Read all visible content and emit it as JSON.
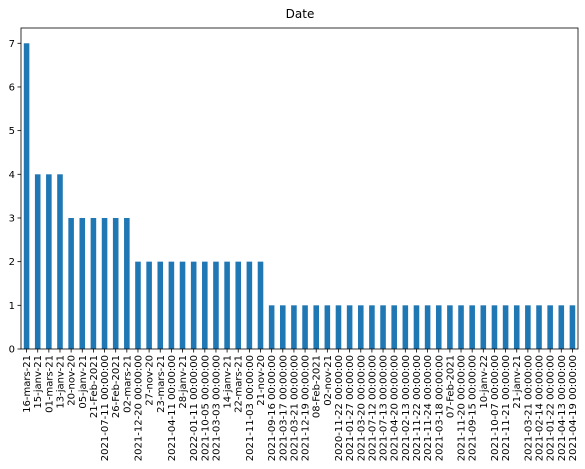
{
  "chart_data": {
    "type": "bar",
    "title": "Date",
    "xlabel": "",
    "ylabel": "",
    "ylim": [
      0,
      7.35
    ],
    "yticks": [
      0,
      1,
      2,
      3,
      4,
      5,
      6,
      7
    ],
    "grid": false,
    "legend": "none",
    "bar_color": "#1f77b4",
    "categories": [
      "16-mars-21",
      "15-janv-21",
      "01-mars-21",
      "13-janv-21",
      "20-nov-20",
      "05-janv-21",
      "21-Feb-2021",
      "2021-07-11 00:00:00",
      "26-Feb-2021",
      "02-mars-21",
      "2021-12-20 00:00:00",
      "27-nov-20",
      "23-mars-21",
      "2021-04-11 00:00:00",
      "28-janv-21",
      "2022-01-11 00:00:00",
      "2021-10-05 00:00:00",
      "2021-03-03 00:00:00",
      "14-janv-21",
      "22-mars-21",
      "2021-11-03 00:00:00",
      "21-nov-20",
      "2021-09-16 00:00:00",
      "2021-03-17 00:00:00",
      "2021-03-21 00:00:00",
      "2021-12-19 00:00:00",
      "08-Feb-2021",
      "02-nov-21",
      "2020-11-22 00:00:00",
      "2021-01-27 00:00:00",
      "2021-03-20 00:00:00",
      "2021-07-12 00:00:00",
      "2021-07-13 00:00:00",
      "2021-04-20 00:00:00",
      "2021-02-13 00:00:00",
      "2021-11-22 00:00:00",
      "2021-11-24 00:00:00",
      "2021-03-18 00:00:00",
      "07-Feb-2021",
      "2021-11-20 00:00:00",
      "2021-09-15 00:00:00",
      "10-janv-22",
      "2021-10-07 00:00:00",
      "2021-11-21 00:00:00",
      "21-janv-21",
      "2021-03-21 00:00:00",
      "2021-02-14 00:00:00",
      "2021-01-22 00:00:00",
      "2021-04-13 00:00:00",
      "2021-04-19 00:00:00"
    ],
    "values": [
      7,
      4,
      4,
      4,
      3,
      3,
      3,
      3,
      3,
      3,
      2,
      2,
      2,
      2,
      2,
      2,
      2,
      2,
      2,
      2,
      2,
      2,
      1,
      1,
      1,
      1,
      1,
      1,
      1,
      1,
      1,
      1,
      1,
      1,
      1,
      1,
      1,
      1,
      1,
      1,
      1,
      1,
      1,
      1,
      1,
      1,
      1,
      1,
      1,
      1
    ]
  }
}
